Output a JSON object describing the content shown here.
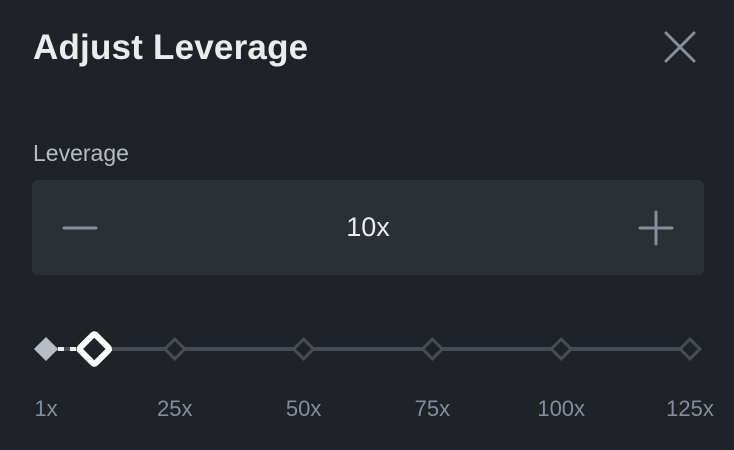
{
  "dialog": {
    "title": "Adjust Leverage",
    "close_icon": "close-icon"
  },
  "leverage": {
    "label": "Leverage",
    "value": "10x",
    "decrease_icon": "minus-icon",
    "increase_icon": "plus-icon"
  },
  "slider": {
    "min": 1,
    "max": 125,
    "current": 10,
    "marks": [
      "1x",
      "25x",
      "50x",
      "75x",
      "100x",
      "125x"
    ]
  },
  "colors": {
    "background": "#1f2227",
    "input_background": "#2b2f36",
    "track": "#474d57",
    "text_primary": "#eaecef",
    "text_secondary": "#b7bdc6",
    "text_muted": "#848e9c",
    "thumb": "#ffffff"
  }
}
